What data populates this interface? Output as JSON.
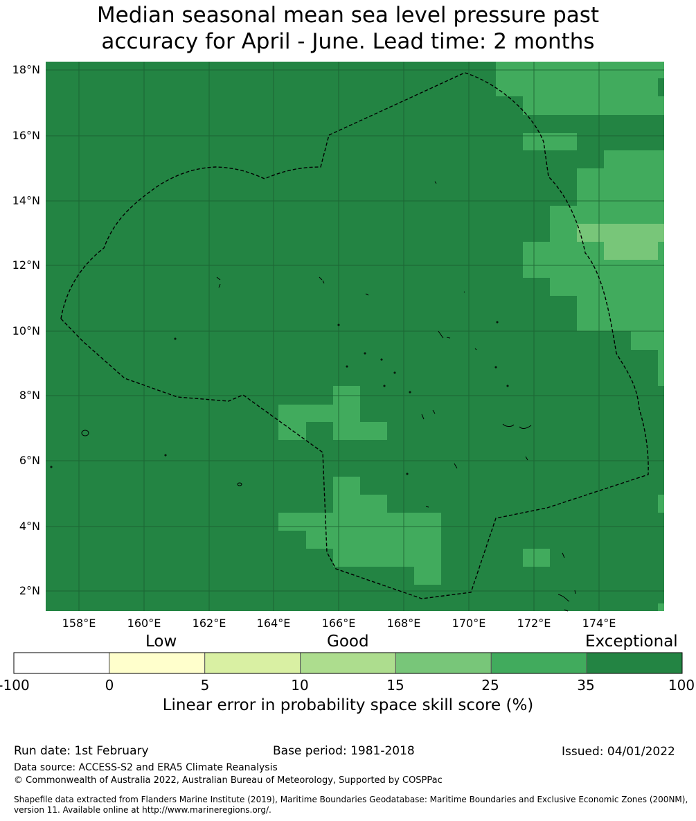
{
  "title": {
    "line1": "Median seasonal mean sea level pressure past",
    "line2": "accuracy for April - June. Lead time: 2 months"
  },
  "map": {
    "lat_labels": [
      "18°N",
      "16°N",
      "14°N",
      "12°N",
      "10°N",
      "8°N",
      "6°N",
      "4°N",
      "2°N"
    ],
    "lon_labels": [
      "158°E",
      "160°E",
      "162°E",
      "164°E",
      "166°E",
      "168°E",
      "170°E",
      "172°E",
      "174°E"
    ],
    "base_color": "#238443",
    "grid_color": "#1a5e30",
    "boundary_style": "dashed black line (EEZ boundary)"
  },
  "colorbar": {
    "category_labels": [
      "Low",
      "Good",
      "Exceptional"
    ],
    "ticks": [
      "-100",
      "0",
      "5",
      "10",
      "15",
      "25",
      "35",
      "100"
    ],
    "colors": [
      "#ffffff",
      "#ffffcc",
      "#d9f0a3",
      "#addd8e",
      "#78c679",
      "#41ab5d",
      "#238443"
    ],
    "title": "Linear error in probability space skill score (%)"
  },
  "footer": {
    "run_date": "Run date: 1st February",
    "base_period": "Base period: 1981-2018",
    "issued": "Issued: 04/01/2022",
    "data_source": "Data source: ACCESS-S2 and ERA5 Climate Reanalysis",
    "copyright": "© Commonwealth of Australia 2022, Australian Bureau of Meteorology, Supported by COSPPac",
    "shapefile_line1": "Shapefile data extracted from Flanders Marine Institute (2019), Maritime Boundaries Geodatabase: Maritime Boundaries and Exclusive Economic Zones (200NM),",
    "shapefile_line2": "version 11. Available online at http://www.marineregions.org/."
  }
}
